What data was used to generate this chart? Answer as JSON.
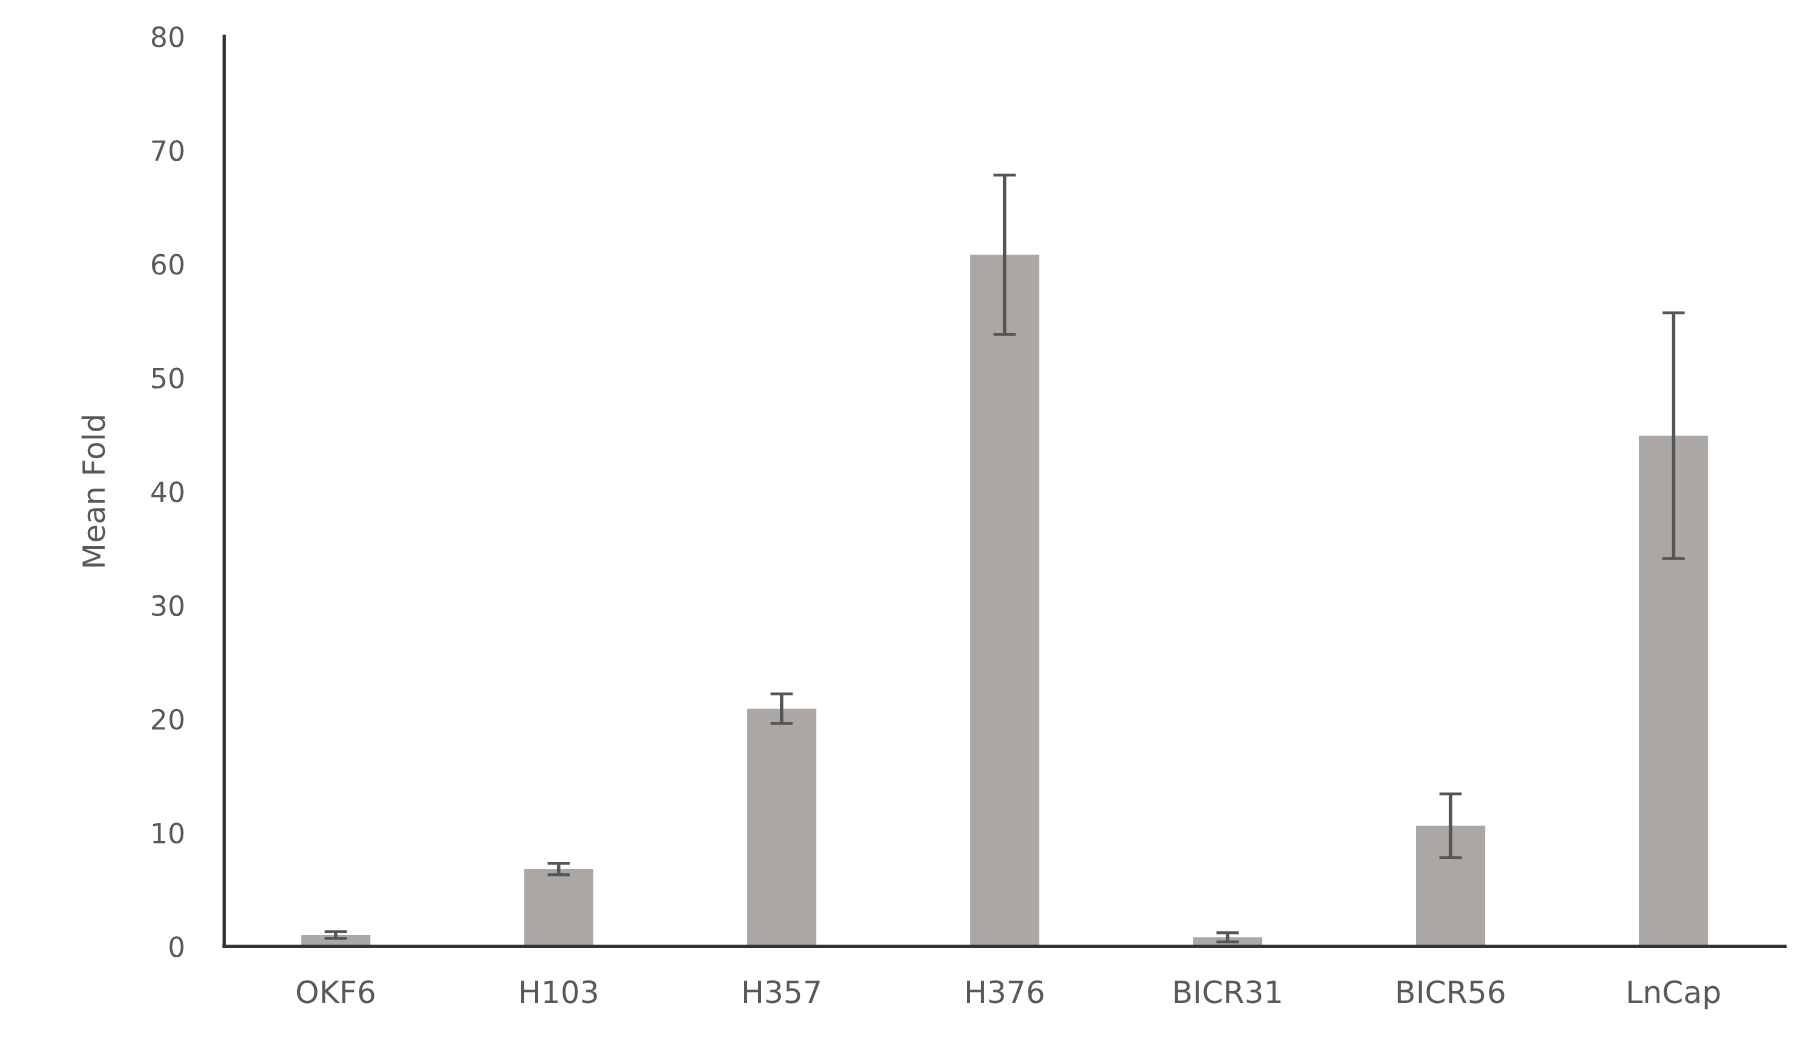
{
  "chart_data": {
    "type": "bar",
    "ylabel": "Mean Fold",
    "categories": [
      "OKF6",
      "H103",
      "H357",
      "H376",
      "BICR31",
      "BICR56",
      "LnCap"
    ],
    "values": [
      1,
      6.8,
      20.9,
      60.8,
      0.8,
      10.6,
      44.9
    ],
    "errors": [
      0.3,
      0.5,
      1.3,
      7,
      0.4,
      2.8,
      10.8
    ],
    "color": "#aba7a4",
    "ylim": [
      0,
      80
    ],
    "yticks": [
      0,
      10,
      20,
      30,
      40,
      50,
      60,
      70,
      80
    ],
    "grid": false,
    "legend": false
  }
}
